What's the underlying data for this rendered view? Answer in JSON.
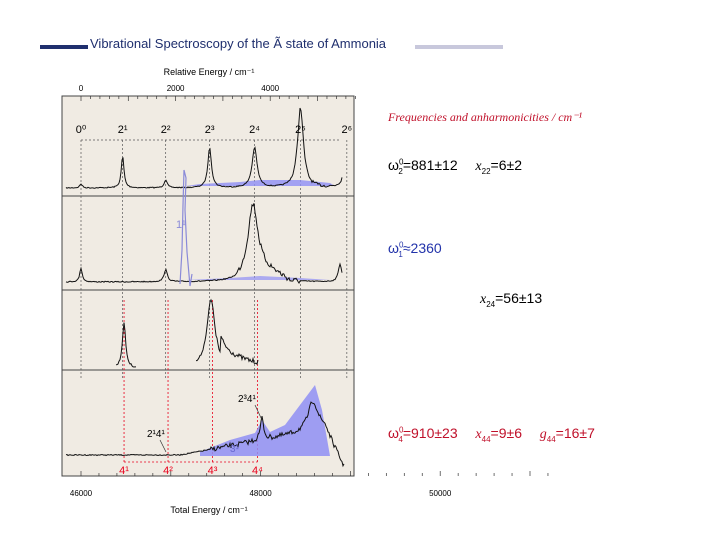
{
  "title": "Vibrational Spectroscopy of the Ã state of Ammonia",
  "chart_data": {
    "type": "line",
    "top_axis": {
      "label": "Relative Energy / cm⁻¹",
      "ticks": [
        "0",
        "2000",
        "4000"
      ],
      "values": [
        0,
        2000,
        4000
      ]
    },
    "bottom_axis": {
      "label": "Total Energy / cm⁻¹",
      "ticks": [
        "46000",
        "48000",
        "50000"
      ],
      "values": [
        46000,
        48000,
        50000
      ]
    },
    "panels": 4,
    "progression_v2": {
      "labels": [
        "0⁰",
        "2¹",
        "2²",
        "2³",
        "2⁴",
        "2⁵",
        "2⁶"
      ],
      "relative_energy": [
        0,
        880,
        1790,
        2720,
        3670,
        4640,
        5620
      ]
    },
    "progression_v4": {
      "labels": [
        "4¹",
        "4²",
        "4³",
        "4⁴"
      ],
      "relative_energy": [
        910,
        1840,
        2780,
        3730
      ],
      "color": "#e8001c"
    },
    "annotations": {
      "v1": "1¹",
      "v3": "3¹",
      "combo_a": "2¹4¹",
      "combo_b": "2³4¹"
    },
    "colors": {
      "trace": "#111111",
      "fill": "#8f8ff5",
      "v1_trace": "#8a8ad8",
      "frame_bg": "#f0ebe3",
      "red": "#e8001c"
    }
  },
  "right_panel": {
    "heading": "Frequencies and anharmonicities / cm⁻¹",
    "w2_sym": "ω",
    "w2_index": "2",
    "w2_sup": "0",
    "w2_value": "=881±12",
    "x22_sym": "x",
    "x22_index": "22",
    "x22_value": "=6±2",
    "w1_sym": "ω",
    "w1_index": "1",
    "w1_sup": "0",
    "w1_value": "≈2360",
    "x24_sym": "x",
    "x24_index": "24",
    "x24_value": "=56±13",
    "w4_sym": "ω",
    "w4_index": "4",
    "w4_sup": "0",
    "w4_value": "=910±23",
    "x44_sym": "x",
    "x44_index": "44",
    "x44_value": "=9±6",
    "g44_sym": "g",
    "g44_index": "44",
    "g44_value": "=16±7"
  }
}
